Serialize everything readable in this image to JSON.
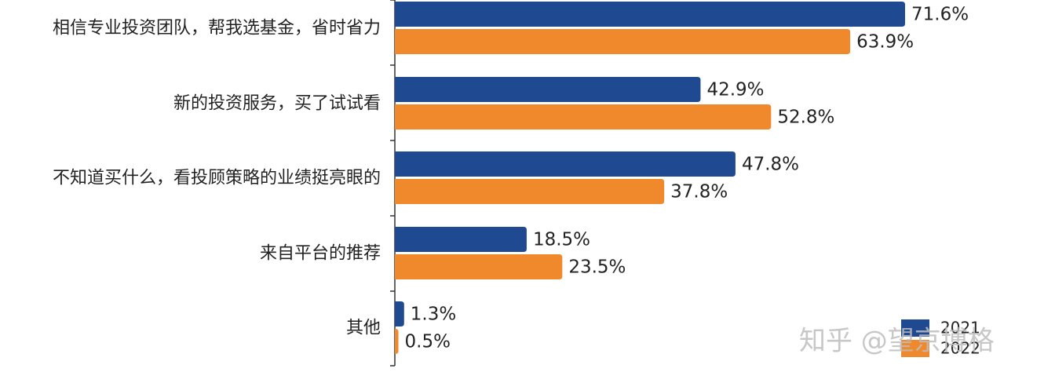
{
  "chart_data": {
    "type": "bar",
    "orientation": "horizontal",
    "categories": [
      "相信专业投资团队，帮我选基金，省时省力",
      "新的投资服务，买了试试看",
      "不知道买什么，看投顾策略的业绩挺亮眼的",
      "来自平台的推荐",
      "其他"
    ],
    "series": [
      {
        "name": "2021",
        "color": "#1f4a92",
        "values": [
          71.6,
          42.9,
          47.8,
          18.5,
          1.3
        ],
        "labels": [
          "71.6%",
          "42.9%",
          "47.8%",
          "18.5%",
          "1.3%"
        ]
      },
      {
        "name": "2022",
        "color": "#f0892b",
        "values": [
          63.9,
          52.8,
          37.8,
          23.5,
          0.5
        ],
        "labels": [
          "63.9%",
          "52.8%",
          "37.8%",
          "23.5%",
          "0.5%"
        ]
      }
    ],
    "title": "",
    "xlabel": "",
    "ylabel": "",
    "xlim": [
      0,
      100
    ],
    "grid": false,
    "legend": "bottom-right"
  },
  "watermark": {
    "text": "知乎 @望京博格"
  }
}
